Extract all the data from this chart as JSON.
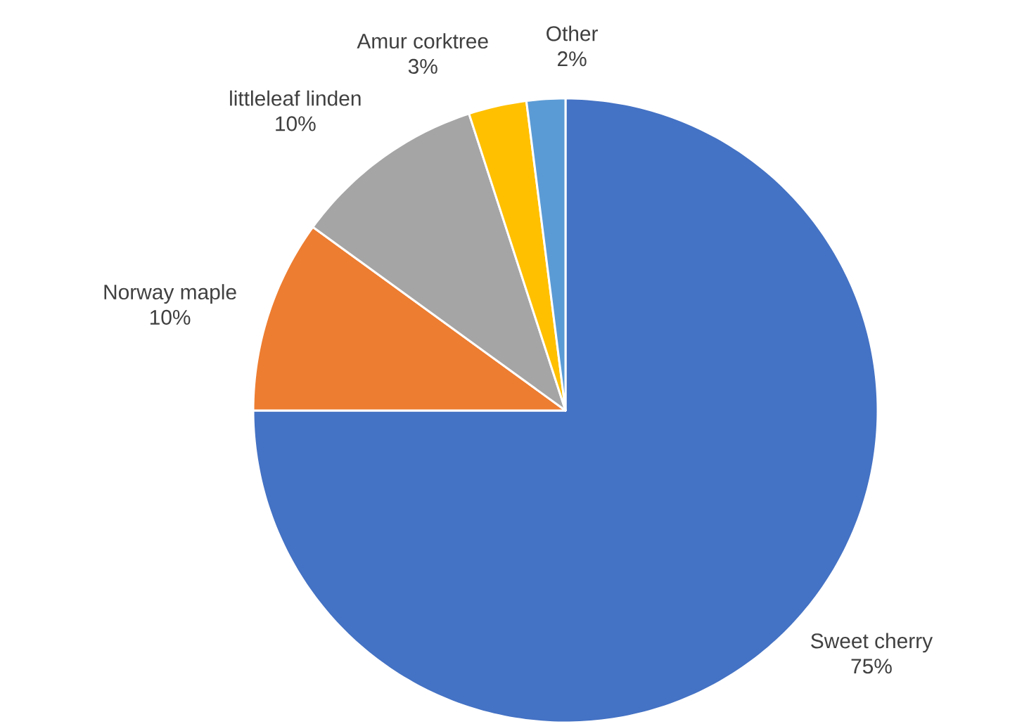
{
  "chart_data": {
    "type": "pie",
    "categories": [
      "Sweet cherry",
      "Norway maple",
      "littleleaf linden",
      "Amur corktree",
      "Other"
    ],
    "values": [
      75,
      10,
      10,
      3,
      2
    ],
    "value_labels": [
      "75%",
      "10%",
      "10%",
      "3%",
      "2%"
    ],
    "colors": [
      "#4472c4",
      "#ed7d31",
      "#a5a5a5",
      "#ffc000",
      "#5b9bd5"
    ]
  }
}
